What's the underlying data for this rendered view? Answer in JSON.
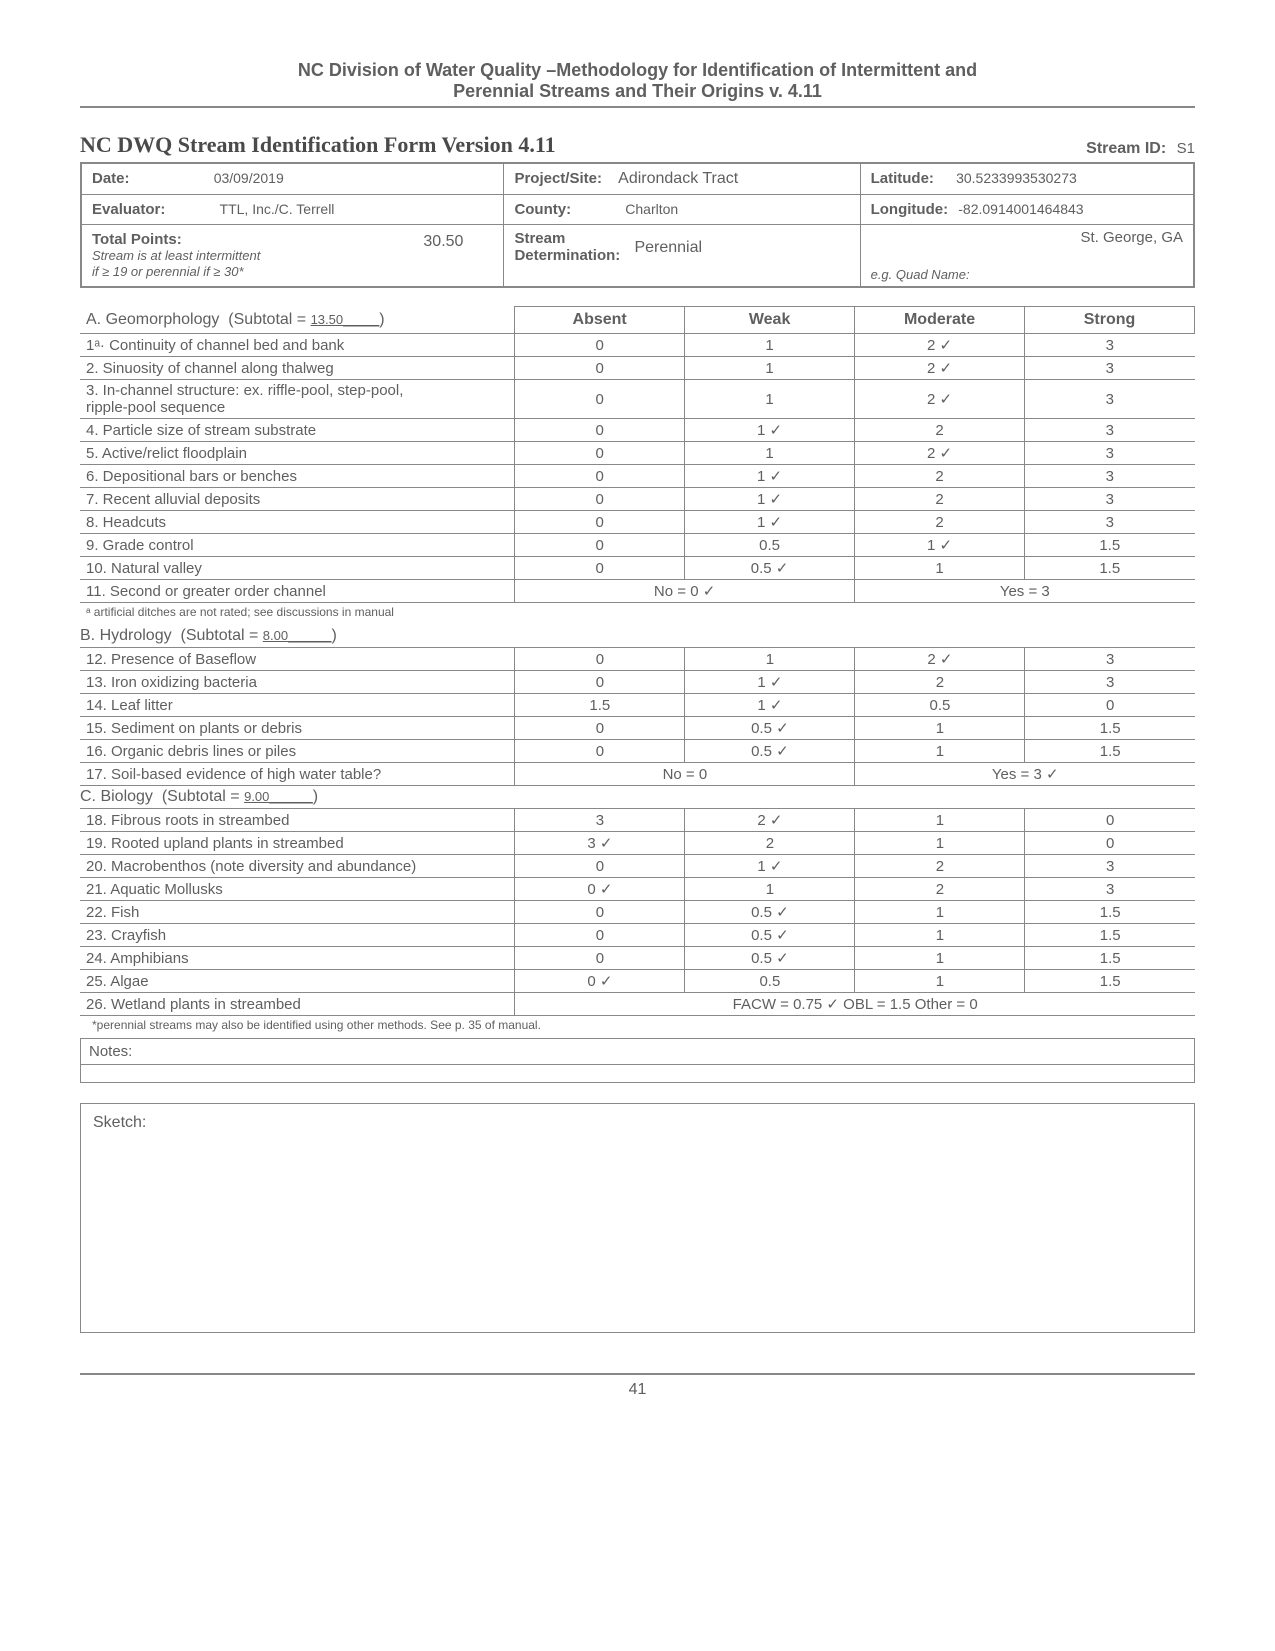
{
  "doc_title_line1": "NC Division of Water Quality –Methodology for Identification of Intermittent and",
  "doc_title_line2": "Perennial Streams and Their Origins v. 4.11",
  "form_title": "NC DWQ Stream Identification Form Version 4.11",
  "stream_id_label": "Stream ID:",
  "stream_id": "S1",
  "info": {
    "date_label": "Date:",
    "date": "03/09/2019",
    "project_label": "Project/Site:",
    "project": "Adirondack Tract",
    "lat_label": "Latitude:",
    "lat": "30.5233993530273",
    "evaluator_label": "Evaluator:",
    "evaluator": "TTL, Inc./C. Terrell",
    "county_label": "County:",
    "county": "Charlton",
    "lon_label": "Longitude:",
    "lon": "-82.0914001464843",
    "total_label": "Total Points:",
    "total_sub1": "Stream is at least intermittent",
    "total_sub2": "if ≥ 19 or perennial if ≥ 30*",
    "total": "30.50",
    "determ_label1": "Stream",
    "determ_label2": "Determination:",
    "determination": "Perennial",
    "quad_label": "e.g. Quad Name:",
    "quad": "St. George, GA"
  },
  "sectionA": {
    "title_prefix": "A. Geomorphology",
    "subtotal_label": "(Subtotal =",
    "subtotal": "13.50",
    "header": [
      "Absent",
      "Weak",
      "Moderate",
      "Strong"
    ],
    "rows": [
      {
        "item": "1ᵃ· Continuity of channel bed and bank",
        "c": [
          "0",
          "1",
          "2 ✓",
          "3"
        ]
      },
      {
        "item": "2. Sinuosity of channel along thalweg",
        "c": [
          "0",
          "1",
          "2 ✓",
          "3"
        ]
      },
      {
        "item": "3. In-channel structure: ex. riffle-pool, step-pool,\n    ripple-pool sequence",
        "c": [
          "0",
          "1",
          "2 ✓",
          "3"
        ]
      },
      {
        "item": "4. Particle size of stream substrate",
        "c": [
          "0",
          "1 ✓",
          "2",
          "3"
        ]
      },
      {
        "item": "5. Active/relict floodplain",
        "c": [
          "0",
          "1",
          "2 ✓",
          "3"
        ]
      },
      {
        "item": "6. Depositional bars or benches",
        "c": [
          "0",
          "1 ✓",
          "2",
          "3"
        ]
      },
      {
        "item": "7. Recent alluvial deposits",
        "c": [
          "0",
          "1 ✓",
          "2",
          "3"
        ]
      },
      {
        "item": "8.  Headcuts",
        "c": [
          "0",
          "1 ✓",
          "2",
          "3"
        ]
      },
      {
        "item": "9. Grade control",
        "c": [
          "0",
          "0.5",
          "1 ✓",
          "1.5"
        ]
      },
      {
        "item": "10. Natural valley",
        "c": [
          "0",
          "0.5  ✓",
          "1",
          "1.5"
        ]
      }
    ],
    "row11": {
      "item": "11. Second or greater order channel",
      "left": "No = 0  ✓",
      "right": "Yes = 3"
    },
    "footnote": "ᵃ artificial ditches are not rated; see discussions in manual"
  },
  "sectionB": {
    "title_prefix": "B. Hydrology",
    "subtotal_label": "(Subtotal =",
    "subtotal": "8.00",
    "rows": [
      {
        "item": "12. Presence of Baseflow",
        "c": [
          "0",
          "1",
          "2 ✓",
          "3"
        ]
      },
      {
        "item": "13. Iron oxidizing bacteria",
        "c": [
          "0",
          "1 ✓",
          "2",
          "3"
        ]
      },
      {
        "item": "14. Leaf litter",
        "c": [
          "1.5",
          "1 ✓",
          "0.5",
          "0"
        ]
      },
      {
        "item": "15. Sediment on plants or debris",
        "c": [
          "0",
          "0.5 ✓",
          "1",
          "1.5"
        ]
      },
      {
        "item": "16. Organic debris lines or piles",
        "c": [
          "0",
          "0.5 ✓",
          "1",
          "1.5"
        ]
      }
    ],
    "row17": {
      "item": "17. Soil-based evidence of high water table?",
      "left": "No = 0",
      "right": "Yes = 3 ✓"
    }
  },
  "sectionC": {
    "title_prefix": "C. Biology",
    "subtotal_label": "(Subtotal =",
    "subtotal": "9.00",
    "rows": [
      {
        "item": "18. Fibrous roots in streambed",
        "c": [
          "3",
          "2  ✓",
          "1",
          "0"
        ]
      },
      {
        "item": "19. Rooted upland plants in streambed",
        "c": [
          "3 ✓",
          "2",
          "1",
          "0"
        ]
      },
      {
        "item": "20. Macrobenthos (note diversity and abundance)",
        "c": [
          "0",
          "1   ✓",
          "2",
          "3"
        ]
      },
      {
        "item": "21. Aquatic Mollusks",
        "c": [
          "0 ✓",
          "1",
          "2",
          "3"
        ]
      },
      {
        "item": "22. Fish",
        "c": [
          "0",
          "0.5 ✓",
          "1",
          "1.5"
        ]
      },
      {
        "item": "23. Crayfish",
        "c": [
          "0",
          "0.5 ✓",
          "1",
          "1.5"
        ]
      },
      {
        "item": "24. Amphibians",
        "c": [
          "0",
          "0.5 ✓",
          "1",
          "1.5"
        ]
      },
      {
        "item": "25. Algae",
        "c": [
          "0 ✓",
          "0.5",
          "1",
          "1.5"
        ]
      }
    ],
    "row26": {
      "item": "26. Wetland plants in streambed",
      "text": "FACW = 0.75     ✓ OBL = 1.5       Other = 0"
    },
    "footnote": "*perennial streams may also be identified using other methods. See p. 35 of manual."
  },
  "notes_label": "Notes:",
  "sketch_label": "Sketch:",
  "page_number": "41"
}
